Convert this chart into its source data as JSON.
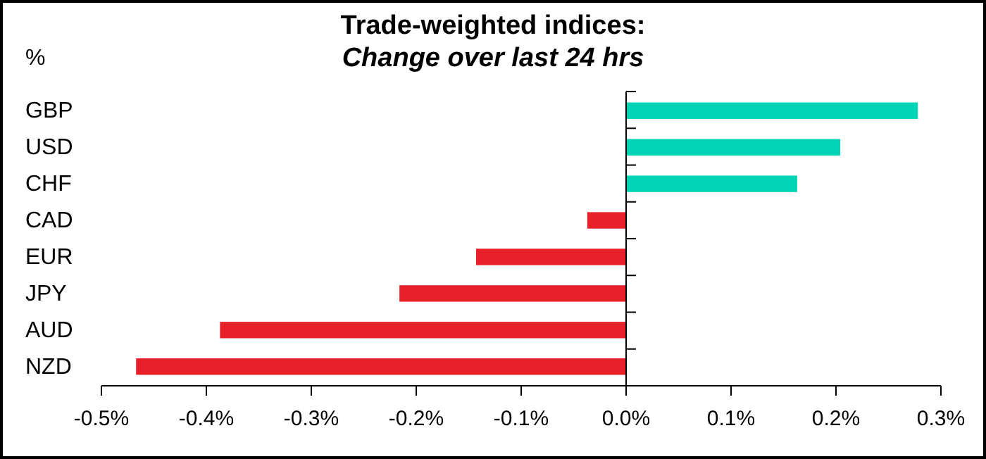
{
  "chart_data": {
    "type": "bar",
    "orientation": "horizontal",
    "title": "Trade-weighted indices:",
    "subtitle": "Change over last 24 hrs",
    "ylabel": "%",
    "categories": [
      "GBP",
      "USD",
      "CHF",
      "CAD",
      "EUR",
      "JPY",
      "AUD",
      "NZD"
    ],
    "values": [
      0.278,
      0.204,
      0.163,
      -0.037,
      -0.143,
      -0.216,
      -0.387,
      -0.467
    ],
    "colors": [
      "#00d4b4",
      "#00d4b4",
      "#00d4b4",
      "#e8202a",
      "#e8202a",
      "#e8202a",
      "#e8202a",
      "#e8202a"
    ],
    "xlim": [
      -0.5,
      0.3
    ],
    "xticks": [
      {
        "value": -0.5,
        "label": "-0.5%"
      },
      {
        "value": -0.4,
        "label": "-0.4%"
      },
      {
        "value": -0.3,
        "label": "-0.3%"
      },
      {
        "value": -0.2,
        "label": "-0.2%"
      },
      {
        "value": -0.1,
        "label": "-0.1%"
      },
      {
        "value": 0,
        "label": "0.0%"
      },
      {
        "value": 0.1,
        "label": "0.1%"
      },
      {
        "value": 0.2,
        "label": "0.2%"
      },
      {
        "value": 0.3,
        "label": "0.3%"
      }
    ],
    "tick_labels": true
  }
}
